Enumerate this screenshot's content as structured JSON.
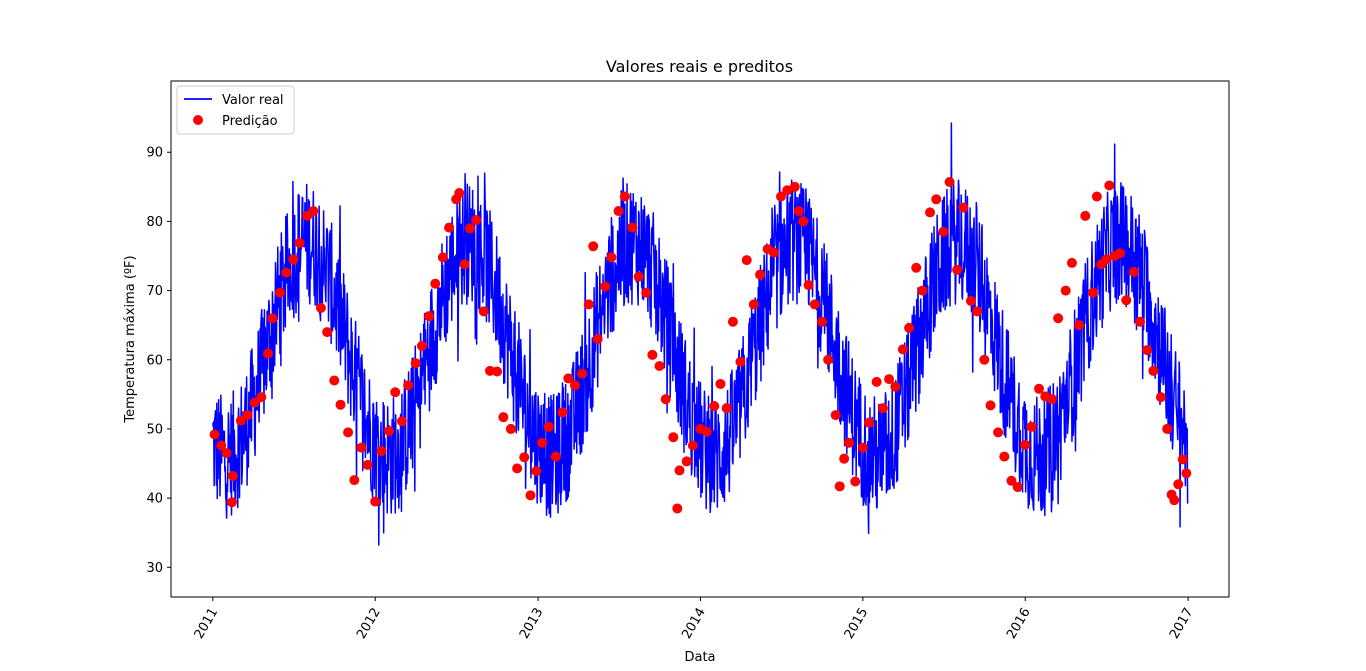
{
  "chart_data": {
    "type": "line",
    "title": "Valores reais e preditos",
    "xlabel": "Data",
    "ylabel": "Temperatura máxima (ºF)",
    "xlim": [
      "2010-09-29",
      "2017-04-03"
    ],
    "ylim": [
      25.7,
      100.3
    ],
    "x_ticks": [
      "2011",
      "2012",
      "2013",
      "2014",
      "2015",
      "2016",
      "2017"
    ],
    "y_ticks": [
      30,
      40,
      50,
      60,
      70,
      80,
      90
    ],
    "grid": false,
    "legend_position": "top-left",
    "colors": {
      "real": "#0000ff",
      "pred": "#ff0000"
    },
    "series": [
      {
        "name": "Valor real",
        "style": "line",
        "x_start": "2011-01-01",
        "x_end": "2016-12-31",
        "x_step_days": 1,
        "seasonal_profile": {
          "mean_low": 46,
          "mean_high": 77,
          "peak_day_of_year": 213,
          "noise_range": 9,
          "max": 96,
          "min": 29
        }
      },
      {
        "name": "Predição",
        "style": "markers",
        "points": [
          [
            "2011-01-05",
            49.2
          ],
          [
            "2011-01-20",
            47.6
          ],
          [
            "2011-02-01",
            46.5
          ],
          [
            "2011-02-13",
            39.4
          ],
          [
            "2011-02-15",
            43.2
          ],
          [
            "2011-03-05",
            51.2
          ],
          [
            "2011-03-20",
            52.0
          ],
          [
            "2011-04-05",
            53.8
          ],
          [
            "2011-04-20",
            54.6
          ],
          [
            "2011-05-05",
            60.9
          ],
          [
            "2011-05-15",
            66.0
          ],
          [
            "2011-06-01",
            69.7
          ],
          [
            "2011-06-15",
            72.6
          ],
          [
            "2011-07-01",
            74.5
          ],
          [
            "2011-07-15",
            76.9
          ],
          [
            "2011-08-01",
            80.8
          ],
          [
            "2011-08-15",
            81.5
          ],
          [
            "2011-09-01",
            67.5
          ],
          [
            "2011-09-15",
            64.0
          ],
          [
            "2011-10-01",
            57.0
          ],
          [
            "2011-10-15",
            53.5
          ],
          [
            "2011-11-01",
            49.5
          ],
          [
            "2011-11-15",
            42.6
          ],
          [
            "2011-12-01",
            47.3
          ],
          [
            "2011-12-15",
            44.8
          ],
          [
            "2012-01-01",
            39.5
          ],
          [
            "2012-01-15",
            46.8
          ],
          [
            "2012-02-01",
            49.7
          ],
          [
            "2012-02-15",
            55.3
          ],
          [
            "2012-03-01",
            51.1
          ],
          [
            "2012-03-15",
            56.3
          ],
          [
            "2012-04-01",
            59.5
          ],
          [
            "2012-04-15",
            62.0
          ],
          [
            "2012-05-01",
            66.3
          ],
          [
            "2012-05-15",
            71.0
          ],
          [
            "2012-06-01",
            74.8
          ],
          [
            "2012-06-15",
            79.1
          ],
          [
            "2012-07-01",
            83.2
          ],
          [
            "2012-07-08",
            84.1
          ],
          [
            "2012-07-20",
            73.8
          ],
          [
            "2012-08-01",
            79.0
          ],
          [
            "2012-08-15",
            80.2
          ],
          [
            "2012-09-01",
            67.0
          ],
          [
            "2012-09-15",
            58.4
          ],
          [
            "2012-10-01",
            58.3
          ],
          [
            "2012-10-15",
            51.7
          ],
          [
            "2012-11-01",
            50.0
          ],
          [
            "2012-11-15",
            44.3
          ],
          [
            "2012-12-01",
            45.9
          ],
          [
            "2012-12-15",
            40.4
          ],
          [
            "2012-12-28",
            43.9
          ],
          [
            "2013-01-10",
            48.0
          ],
          [
            "2013-01-25",
            50.3
          ],
          [
            "2013-02-10",
            46.0
          ],
          [
            "2013-02-25",
            52.4
          ],
          [
            "2013-03-10",
            57.3
          ],
          [
            "2013-03-25",
            56.3
          ],
          [
            "2013-04-10",
            58.0
          ],
          [
            "2013-04-25",
            68.0
          ],
          [
            "2013-05-05",
            76.4
          ],
          [
            "2013-05-15",
            63.0
          ],
          [
            "2013-06-01",
            70.6
          ],
          [
            "2013-06-15",
            74.8
          ],
          [
            "2013-07-01",
            81.5
          ],
          [
            "2013-07-15",
            83.6
          ],
          [
            "2013-08-01",
            79.1
          ],
          [
            "2013-08-15",
            72.0
          ],
          [
            "2013-09-01",
            69.7
          ],
          [
            "2013-09-15",
            60.7
          ],
          [
            "2013-10-01",
            59.1
          ],
          [
            "2013-10-15",
            54.3
          ],
          [
            "2013-11-01",
            48.8
          ],
          [
            "2013-11-10",
            38.5
          ],
          [
            "2013-11-15",
            44.0
          ],
          [
            "2013-12-01",
            45.3
          ],
          [
            "2013-12-15",
            47.6
          ],
          [
            "2014-01-01",
            50.0
          ],
          [
            "2014-01-15",
            49.6
          ],
          [
            "2014-02-01",
            53.3
          ],
          [
            "2014-02-15",
            56.5
          ],
          [
            "2014-03-01",
            53.0
          ],
          [
            "2014-03-15",
            65.5
          ],
          [
            "2014-04-01",
            59.7
          ],
          [
            "2014-04-15",
            74.4
          ],
          [
            "2014-05-01",
            68.0
          ],
          [
            "2014-05-15",
            72.3
          ],
          [
            "2014-06-01",
            76.0
          ],
          [
            "2014-06-15",
            75.5
          ],
          [
            "2014-07-01",
            83.6
          ],
          [
            "2014-07-15",
            84.5
          ],
          [
            "2014-08-01",
            85.0
          ],
          [
            "2014-08-10",
            81.5
          ],
          [
            "2014-08-20",
            80.0
          ],
          [
            "2014-09-01",
            70.8
          ],
          [
            "2014-09-15",
            68.0
          ],
          [
            "2014-10-01",
            65.5
          ],
          [
            "2014-10-15",
            60.0
          ],
          [
            "2014-11-01",
            52.0
          ],
          [
            "2014-11-10",
            41.7
          ],
          [
            "2014-11-20",
            45.7
          ],
          [
            "2014-12-01",
            48.0
          ],
          [
            "2014-12-15",
            42.4
          ],
          [
            "2015-01-01",
            47.3
          ],
          [
            "2015-01-15",
            50.9
          ],
          [
            "2015-02-01",
            56.8
          ],
          [
            "2015-02-15",
            53.0
          ],
          [
            "2015-03-01",
            57.2
          ],
          [
            "2015-03-15",
            56.1
          ],
          [
            "2015-04-01",
            61.5
          ],
          [
            "2015-04-15",
            64.6
          ],
          [
            "2015-05-01",
            73.3
          ],
          [
            "2015-05-15",
            70.0
          ],
          [
            "2015-06-01",
            81.3
          ],
          [
            "2015-06-15",
            83.2
          ],
          [
            "2015-07-01",
            78.5
          ],
          [
            "2015-07-15",
            85.7
          ],
          [
            "2015-08-01",
            73.0
          ],
          [
            "2015-08-15",
            82.0
          ],
          [
            "2015-09-01",
            68.5
          ],
          [
            "2015-09-15",
            67.0
          ],
          [
            "2015-10-01",
            60.0
          ],
          [
            "2015-10-15",
            53.4
          ],
          [
            "2015-11-01",
            49.5
          ],
          [
            "2015-11-15",
            46.0
          ],
          [
            "2015-12-01",
            42.5
          ],
          [
            "2015-12-15",
            41.6
          ],
          [
            "2016-01-01",
            47.7
          ],
          [
            "2016-01-15",
            50.3
          ],
          [
            "2016-02-01",
            55.8
          ],
          [
            "2016-02-15",
            54.7
          ],
          [
            "2016-03-01",
            54.3
          ],
          [
            "2016-03-15",
            66.0
          ],
          [
            "2016-04-01",
            70.0
          ],
          [
            "2016-04-15",
            74.0
          ],
          [
            "2016-05-01",
            65.0
          ],
          [
            "2016-05-15",
            80.8
          ],
          [
            "2016-06-01",
            69.7
          ],
          [
            "2016-06-10",
            83.6
          ],
          [
            "2016-06-20",
            73.8
          ],
          [
            "2016-07-01",
            74.5
          ],
          [
            "2016-07-08",
            85.2
          ],
          [
            "2016-07-20",
            75.0
          ],
          [
            "2016-08-01",
            75.4
          ],
          [
            "2016-08-15",
            68.6
          ],
          [
            "2016-09-01",
            72.7
          ],
          [
            "2016-09-15",
            65.5
          ],
          [
            "2016-10-01",
            61.4
          ],
          [
            "2016-10-15",
            58.4
          ],
          [
            "2016-11-01",
            54.6
          ],
          [
            "2016-11-15",
            50.0
          ],
          [
            "2016-11-25",
            40.5
          ],
          [
            "2016-12-01",
            39.7
          ],
          [
            "2016-12-10",
            42.0
          ],
          [
            "2016-12-20",
            45.6
          ],
          [
            "2016-12-28",
            43.6
          ]
        ]
      }
    ]
  }
}
